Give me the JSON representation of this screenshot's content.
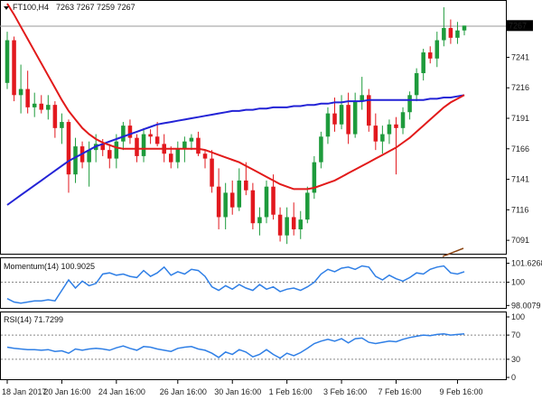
{
  "header": {
    "symbol": "FT100,H4",
    "ohlc": "7263 7267 7259 7267"
  },
  "colors": {
    "bull": "#1e9b3c",
    "bear": "#e2181e",
    "ma_fast": "#e21a1a",
    "ma_slow": "#2323d6",
    "indicator": "#2f7fe6",
    "price_tag_bg": "#000000",
    "price_tag_text": "#ffffff",
    "grid": "#888888"
  },
  "chart_data": [
    {
      "type": "candlestick",
      "title": "FT100,H4 7263 7267 7259 7267",
      "ylim": [
        7080,
        7285
      ],
      "y_ticks": [
        7267,
        7241,
        7216,
        7191,
        7166,
        7141,
        7116,
        7091
      ],
      "current_price": 7267,
      "x_tick_labels": [
        "18 Jan 2017",
        "20 Jan 16:00",
        "24 Jan 16:00",
        "26 Jan 16:00",
        "30 Jan 16:00",
        "1 Feb 16:00",
        "3 Feb 16:00",
        "7 Feb 16:00",
        "9 Feb 16:00"
      ],
      "candles": [
        [
          7220,
          7262,
          7215,
          7255
        ],
        [
          7255,
          7258,
          7205,
          7210
        ],
        [
          7210,
          7235,
          7195,
          7215
        ],
        [
          7215,
          7230,
          7195,
          7200
        ],
        [
          7200,
          7212,
          7192,
          7203
        ],
        [
          7203,
          7210,
          7195,
          7198
        ],
        [
          7198,
          7210,
          7190,
          7202
        ],
        [
          7202,
          7205,
          7175,
          7183
        ],
        [
          7183,
          7195,
          7170,
          7188
        ],
        [
          7188,
          7190,
          7130,
          7145
        ],
        [
          7145,
          7175,
          7138,
          7168
        ],
        [
          7168,
          7172,
          7150,
          7155
        ],
        [
          7155,
          7172,
          7135,
          7165
        ],
        [
          7165,
          7178,
          7155,
          7170
        ],
        [
          7170,
          7174,
          7160,
          7165
        ],
        [
          7165,
          7170,
          7150,
          7158
        ],
        [
          7158,
          7178,
          7150,
          7172
        ],
        [
          7172,
          7188,
          7165,
          7185
        ],
        [
          7185,
          7190,
          7170,
          7175
        ],
        [
          7175,
          7178,
          7155,
          7160
        ],
        [
          7160,
          7183,
          7155,
          7178
        ],
        [
          7178,
          7182,
          7170,
          7176
        ],
        [
          7176,
          7188,
          7168,
          7170
        ],
        [
          7170,
          7178,
          7155,
          7162
        ],
        [
          7162,
          7168,
          7150,
          7155
        ],
        [
          7155,
          7172,
          7150,
          7166
        ],
        [
          7166,
          7176,
          7155,
          7172
        ],
        [
          7172,
          7178,
          7165,
          7175
        ],
        [
          7175,
          7180,
          7160,
          7162
        ],
        [
          7162,
          7165,
          7150,
          7158
        ],
        [
          7158,
          7165,
          7130,
          7135
        ],
        [
          7135,
          7150,
          7100,
          7110
        ],
        [
          7110,
          7138,
          7100,
          7130
        ],
        [
          7130,
          7140,
          7112,
          7118
        ],
        [
          7118,
          7150,
          7115,
          7140
        ],
        [
          7140,
          7155,
          7128,
          7132
        ],
        [
          7132,
          7138,
          7100,
          7105
        ],
        [
          7105,
          7118,
          7095,
          7110
        ],
        [
          7110,
          7140,
          7105,
          7135
        ],
        [
          7135,
          7145,
          7108,
          7112
        ],
        [
          7112,
          7118,
          7090,
          7095
        ],
        [
          7095,
          7118,
          7088,
          7110
        ],
        [
          7110,
          7122,
          7095,
          7100
        ],
        [
          7100,
          7115,
          7092,
          7108
        ],
        [
          7108,
          7135,
          7105,
          7130
        ],
        [
          7130,
          7160,
          7125,
          7155
        ],
        [
          7155,
          7180,
          7150,
          7176
        ],
        [
          7176,
          7200,
          7170,
          7195
        ],
        [
          7195,
          7208,
          7180,
          7186
        ],
        [
          7186,
          7210,
          7182,
          7202
        ],
        [
          7202,
          7212,
          7170,
          7178
        ],
        [
          7178,
          7212,
          7175,
          7205
        ],
        [
          7205,
          7225,
          7198,
          7210
        ],
        [
          7210,
          7215,
          7180,
          7185
        ],
        [
          7185,
          7195,
          7165,
          7172
        ],
        [
          7172,
          7185,
          7162,
          7178
        ],
        [
          7178,
          7190,
          7170,
          7186
        ],
        [
          7186,
          7192,
          7145,
          7183
        ],
        [
          7183,
          7200,
          7178,
          7196
        ],
        [
          7196,
          7213,
          7190,
          7210
        ],
        [
          7210,
          7232,
          7205,
          7228
        ],
        [
          7228,
          7248,
          7222,
          7245
        ],
        [
          7245,
          7250,
          7236,
          7240
        ],
        [
          7240,
          7262,
          7233,
          7255
        ],
        [
          7255,
          7282,
          7250,
          7265
        ],
        [
          7265,
          7272,
          7252,
          7257
        ],
        [
          7257,
          7270,
          7252,
          7263
        ],
        [
          7263,
          7267,
          7259,
          7267
        ]
      ],
      "ma_fast": [
        7285,
        7276,
        7266,
        7256,
        7246,
        7236,
        7226,
        7216,
        7206,
        7197,
        7190,
        7183,
        7178,
        7174,
        7171,
        7169,
        7167,
        7166,
        7166,
        7166,
        7166,
        7166,
        7166,
        7166,
        7166,
        7166,
        7166,
        7166,
        7166,
        7165,
        7163,
        7161,
        7159,
        7157,
        7155,
        7152,
        7149,
        7146,
        7143,
        7140,
        7137,
        7135,
        7133,
        7133,
        7133,
        7134,
        7136,
        7138,
        7140,
        7143,
        7146,
        7149,
        7152,
        7155,
        7158,
        7161,
        7164,
        7167,
        7171,
        7175,
        7180,
        7185,
        7190,
        7195,
        7200,
        7204,
        7207,
        7210
      ],
      "ma_slow": [
        7120,
        7124,
        7128,
        7132,
        7136,
        7140,
        7144,
        7148,
        7152,
        7156,
        7159,
        7162,
        7165,
        7168,
        7170,
        7172,
        7174,
        7176,
        7178,
        7180,
        7182,
        7184,
        7186,
        7187,
        7188,
        7189,
        7190,
        7191,
        7192,
        7193,
        7194,
        7195,
        7196,
        7197,
        7197,
        7198,
        7198,
        7199,
        7199,
        7200,
        7200,
        7200,
        7201,
        7201,
        7202,
        7202,
        7203,
        7203,
        7204,
        7204,
        7205,
        7205,
        7205,
        7206,
        7206,
        7206,
        7206,
        7206,
        7206,
        7206,
        7206,
        7206,
        7207,
        7207,
        7208,
        7208,
        7209,
        7210
      ]
    },
    {
      "type": "line",
      "title": "Momentum(14) 100.9025",
      "ylim": [
        97.8,
        101.9
      ],
      "y_ticks": [
        101.6268,
        100,
        98.0079
      ],
      "reference_level": 100,
      "values": [
        98.6,
        98.3,
        98.2,
        98.3,
        98.4,
        98.4,
        98.5,
        98.4,
        99.3,
        100.2,
        99.5,
        100.1,
        99.7,
        99.9,
        100.7,
        100.8,
        100.6,
        100.7,
        100.5,
        100.4,
        101.0,
        100.5,
        100.8,
        101.3,
        100.6,
        100.9,
        100.7,
        101.1,
        101.0,
        100.5,
        99.6,
        99.3,
        99.7,
        99.4,
        99.8,
        99.5,
        99.3,
        99.8,
        99.4,
        99.6,
        99.2,
        99.4,
        99.5,
        99.3,
        99.6,
        100.0,
        100.7,
        101.1,
        100.9,
        101.2,
        101.3,
        101.1,
        101.4,
        101.3,
        100.5,
        100.2,
        100.6,
        100.3,
        100.1,
        100.4,
        100.8,
        100.7,
        101.1,
        101.3,
        101.4,
        100.8,
        100.7,
        100.9
      ]
    },
    {
      "type": "line",
      "title": "RSI(14) 71.7299",
      "ylim": [
        0,
        100
      ],
      "y_ticks": [
        100,
        70,
        30,
        0
      ],
      "levels": [
        70,
        30
      ],
      "values": [
        50,
        48,
        47,
        46,
        46,
        45,
        46,
        43,
        44,
        40,
        47,
        45,
        47,
        48,
        47,
        45,
        49,
        52,
        48,
        45,
        51,
        50,
        47,
        45,
        43,
        48,
        50,
        51,
        47,
        45,
        40,
        33,
        42,
        38,
        46,
        42,
        34,
        38,
        46,
        38,
        32,
        40,
        36,
        41,
        48,
        56,
        60,
        63,
        60,
        64,
        57,
        64,
        65,
        58,
        56,
        58,
        60,
        59,
        63,
        66,
        68,
        70,
        69,
        71,
        72,
        70,
        71,
        72
      ]
    }
  ]
}
